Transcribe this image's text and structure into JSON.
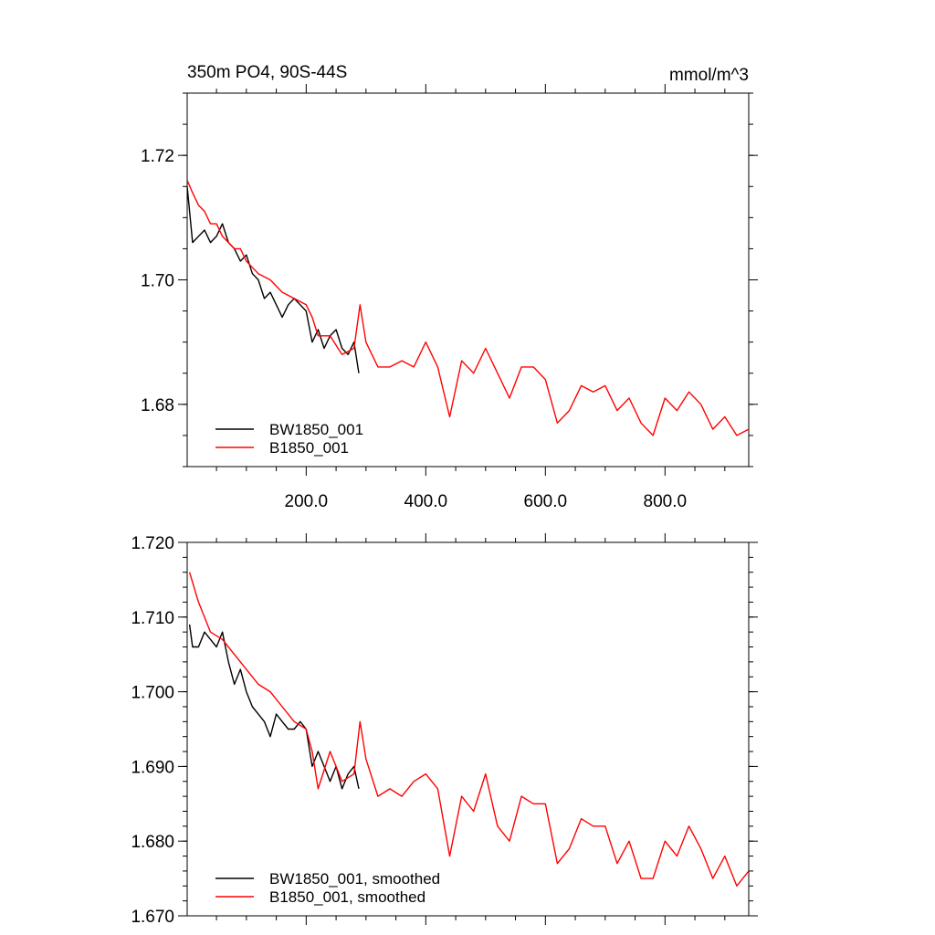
{
  "chart_data": [
    {
      "type": "line",
      "title": "350m PO4, 90S-44S",
      "units": "mmol/m^3",
      "xlim": [
        1,
        940
      ],
      "ylim": [
        1.67,
        1.73
      ],
      "xticks": [
        200,
        400,
        600,
        800
      ],
      "xtick_labels": [
        "200.0",
        "400.0",
        "600.0",
        "800.0"
      ],
      "yticks": [
        1.68,
        1.7,
        1.72
      ],
      "ytick_labels": [
        "1.68",
        "1.70",
        "1.72"
      ],
      "legend_position": "bottom-left",
      "grid": false,
      "series": [
        {
          "name": "BW1850_001",
          "color": "#000000",
          "x": [
            1,
            10,
            20,
            30,
            40,
            50,
            60,
            70,
            80,
            90,
            100,
            110,
            120,
            130,
            140,
            150,
            160,
            170,
            180,
            190,
            200,
            210,
            220,
            230,
            240,
            250,
            260,
            270,
            280,
            288
          ],
          "y": [
            1.715,
            1.706,
            1.707,
            1.708,
            1.706,
            1.707,
            1.709,
            1.706,
            1.705,
            1.703,
            1.704,
            1.701,
            1.7,
            1.697,
            1.698,
            1.696,
            1.694,
            1.696,
            1.697,
            1.696,
            1.695,
            1.69,
            1.692,
            1.689,
            1.691,
            1.692,
            1.689,
            1.688,
            1.69,
            1.685
          ]
        },
        {
          "name": "B1850_001",
          "color": "#ff0000",
          "x": [
            1,
            10,
            20,
            30,
            40,
            50,
            60,
            70,
            80,
            90,
            100,
            120,
            140,
            160,
            180,
            200,
            210,
            220,
            240,
            260,
            280,
            290,
            300,
            320,
            340,
            360,
            380,
            400,
            420,
            440,
            460,
            480,
            500,
            520,
            540,
            560,
            580,
            600,
            620,
            640,
            660,
            680,
            700,
            720,
            740,
            760,
            780,
            800,
            820,
            840,
            860,
            880,
            900,
            920,
            940
          ],
          "y": [
            1.716,
            1.714,
            1.712,
            1.711,
            1.709,
            1.709,
            1.707,
            1.706,
            1.705,
            1.705,
            1.703,
            1.701,
            1.7,
            1.698,
            1.697,
            1.696,
            1.694,
            1.691,
            1.691,
            1.688,
            1.689,
            1.696,
            1.69,
            1.686,
            1.686,
            1.687,
            1.686,
            1.69,
            1.686,
            1.678,
            1.687,
            1.685,
            1.689,
            1.685,
            1.681,
            1.686,
            1.686,
            1.684,
            1.677,
            1.679,
            1.683,
            1.682,
            1.683,
            1.679,
            1.681,
            1.677,
            1.675,
            1.681,
            1.679,
            1.682,
            1.68,
            1.676,
            1.678,
            1.675,
            1.676
          ]
        }
      ]
    },
    {
      "type": "line",
      "title": "",
      "xlim": [
        1,
        940
      ],
      "ylim": [
        1.67,
        1.72
      ],
      "yticks": [
        1.67,
        1.68,
        1.69,
        1.7,
        1.71,
        1.72
      ],
      "ytick_labels": [
        "1.670",
        "1.680",
        "1.690",
        "1.700",
        "1.710",
        "1.720"
      ],
      "legend_position": "bottom-left",
      "grid": false,
      "series": [
        {
          "name": "BW1850_001, smoothed",
          "color": "#000000",
          "x": [
            5,
            10,
            20,
            30,
            40,
            50,
            60,
            70,
            80,
            90,
            100,
            110,
            120,
            130,
            140,
            150,
            160,
            170,
            180,
            190,
            200,
            210,
            220,
            230,
            240,
            250,
            260,
            270,
            280,
            288
          ],
          "y": [
            1.709,
            1.706,
            1.706,
            1.708,
            1.707,
            1.706,
            1.708,
            1.704,
            1.701,
            1.703,
            1.7,
            1.698,
            1.697,
            1.696,
            1.694,
            1.697,
            1.696,
            1.695,
            1.695,
            1.696,
            1.695,
            1.69,
            1.692,
            1.69,
            1.688,
            1.69,
            1.687,
            1.689,
            1.69,
            1.687
          ]
        },
        {
          "name": "B1850_001, smoothed",
          "color": "#ff0000",
          "x": [
            5,
            20,
            40,
            60,
            80,
            100,
            120,
            140,
            160,
            180,
            200,
            210,
            220,
            240,
            260,
            280,
            290,
            300,
            320,
            340,
            360,
            380,
            400,
            420,
            440,
            460,
            480,
            500,
            520,
            540,
            560,
            580,
            600,
            620,
            640,
            660,
            680,
            700,
            720,
            740,
            760,
            780,
            800,
            820,
            840,
            860,
            880,
            900,
            920,
            940
          ],
          "y": [
            1.716,
            1.712,
            1.708,
            1.707,
            1.705,
            1.703,
            1.701,
            1.7,
            1.698,
            1.696,
            1.695,
            1.692,
            1.687,
            1.692,
            1.688,
            1.689,
            1.696,
            1.691,
            1.686,
            1.687,
            1.686,
            1.688,
            1.689,
            1.687,
            1.678,
            1.686,
            1.684,
            1.689,
            1.682,
            1.68,
            1.686,
            1.685,
            1.685,
            1.677,
            1.679,
            1.683,
            1.682,
            1.682,
            1.677,
            1.68,
            1.675,
            1.675,
            1.68,
            1.678,
            1.682,
            1.679,
            1.675,
            1.678,
            1.674,
            1.676
          ]
        }
      ]
    }
  ]
}
